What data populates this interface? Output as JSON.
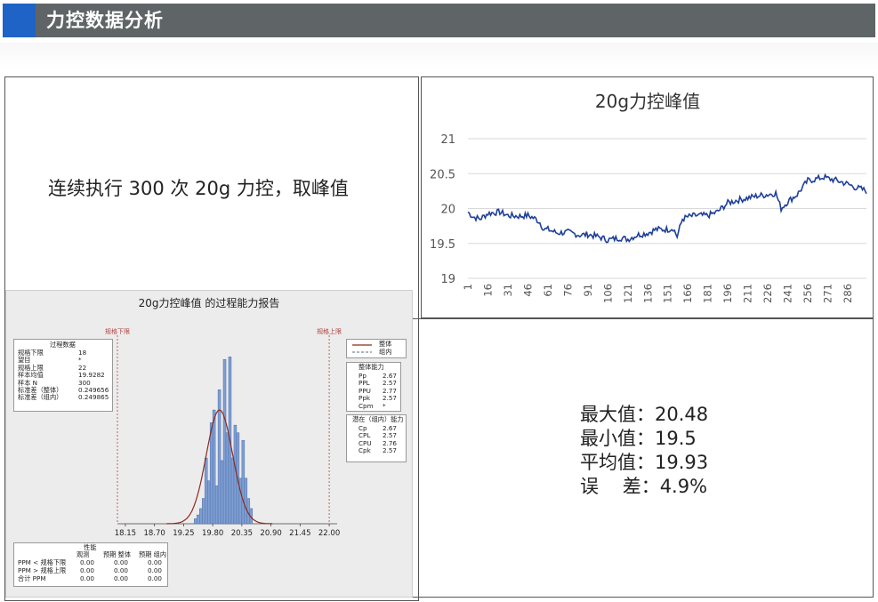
{
  "header": {
    "title": "力控数据分析",
    "accent_color": "#1f63c7",
    "bar_color": "#5f6566"
  },
  "left": {
    "description": "连续执行 300 次 20g 力控，取峰值"
  },
  "chart_data": [
    {
      "type": "line",
      "title": "20g力控峰值",
      "xlabel": "",
      "ylabel": "",
      "ylim": [
        19,
        21
      ],
      "yticks": [
        "19",
        "19.5",
        "20",
        "20.5",
        "21"
      ],
      "xticks": [
        "1",
        "16",
        "31",
        "46",
        "61",
        "76",
        "91",
        "106",
        "121",
        "136",
        "151",
        "166",
        "181",
        "196",
        "211",
        "226",
        "241",
        "256",
        "271",
        "286"
      ],
      "x_range": [
        1,
        300
      ],
      "series": [
        {
          "color": "#1f3f99",
          "points": [
            [
              1,
              19.95
            ],
            [
              5,
              19.88
            ],
            [
              10,
              19.85
            ],
            [
              16,
              19.93
            ],
            [
              25,
              19.95
            ],
            [
              31,
              19.9
            ],
            [
              40,
              19.89
            ],
            [
              46,
              19.9
            ],
            [
              52,
              19.85
            ],
            [
              55,
              19.8
            ],
            [
              58,
              19.7
            ],
            [
              61,
              19.7
            ],
            [
              68,
              19.65
            ],
            [
              76,
              19.66
            ],
            [
              85,
              19.62
            ],
            [
              91,
              19.63
            ],
            [
              100,
              19.59
            ],
            [
              106,
              19.55
            ],
            [
              115,
              19.58
            ],
            [
              121,
              19.56
            ],
            [
              128,
              19.62
            ],
            [
              136,
              19.65
            ],
            [
              142,
              19.7
            ],
            [
              151,
              19.7
            ],
            [
              155,
              19.72
            ],
            [
              158,
              19.6
            ],
            [
              162,
              19.85
            ],
            [
              166,
              19.88
            ],
            [
              172,
              19.9
            ],
            [
              181,
              19.9
            ],
            [
              188,
              19.95
            ],
            [
              196,
              20.08
            ],
            [
              203,
              20.12
            ],
            [
              211,
              20.15
            ],
            [
              218,
              20.18
            ],
            [
              226,
              20.2
            ],
            [
              232,
              20.22
            ],
            [
              236,
              20.0
            ],
            [
              241,
              20.1
            ],
            [
              248,
              20.2
            ],
            [
              252,
              20.3
            ],
            [
              256,
              20.4
            ],
            [
              262,
              20.42
            ],
            [
              268,
              20.45
            ],
            [
              271,
              20.43
            ],
            [
              278,
              20.4
            ],
            [
              286,
              20.35
            ],
            [
              292,
              20.3
            ],
            [
              296,
              20.28
            ],
            [
              300,
              20.25
            ]
          ]
        }
      ]
    },
    {
      "type": "bar",
      "title": "20g力控峰值 的过程能力报告",
      "xlabel": "",
      "ylabel": "",
      "xlim": [
        18.0,
        22.15
      ],
      "xticks": [
        "18.15",
        "18.70",
        "19.25",
        "19.80",
        "20.35",
        "20.90",
        "21.45",
        "22.00"
      ],
      "reference_lines": [
        {
          "label": "规格下限",
          "x": 18.0
        },
        {
          "label": "规格上限",
          "x": 22.0
        }
      ],
      "bin_width": 0.05,
      "bin_start": 19.45,
      "values": [
        0.2,
        0.35,
        0.6,
        1.0,
        2.6,
        1.7,
        4.0,
        4.5,
        1.5,
        5.3,
        2.5,
        6.5,
        3.6,
        6.6,
        2.6,
        3.9,
        3.6,
        1.8,
        3.3,
        1.8,
        1.0,
        0.6
      ],
      "fit_curve": {
        "mean": 19.9282,
        "stdev": 0.249656,
        "color": "#8b2a1f"
      },
      "bar_color": "#7f9fd3",
      "legend": [
        {
          "label": "整体",
          "style": "solid",
          "color": "#8b2a1f"
        },
        {
          "label": "组内",
          "style": "dashed",
          "color": "#5a6a8a"
        }
      ]
    }
  ],
  "minitab": {
    "process_data": {
      "title": "过程数据",
      "rows": [
        [
          "规格下限",
          "18"
        ],
        [
          "望目",
          "*"
        ],
        [
          "规格上限",
          "22"
        ],
        [
          "样本均值",
          "19.9282"
        ],
        [
          "样本 N",
          "300"
        ],
        [
          "标准差（整体）",
          "0.249656"
        ],
        [
          "标准差（组内）",
          "0.249865"
        ]
      ]
    },
    "overall": {
      "title": "整体能力",
      "rows": [
        [
          "Pp",
          "2.67"
        ],
        [
          "PPL",
          "2.57"
        ],
        [
          "PPU",
          "2.77"
        ],
        [
          "Ppk",
          "2.57"
        ],
        [
          "Cpm",
          "*"
        ]
      ]
    },
    "potential": {
      "title": "潜在（组内）能力",
      "rows": [
        [
          "Cp",
          "2.67"
        ],
        [
          "CPL",
          "2.57"
        ],
        [
          "CPU",
          "2.76"
        ],
        [
          "Cpk",
          "2.57"
        ]
      ]
    },
    "performance": {
      "title": "性能",
      "headers": [
        "观测",
        "预期 整体",
        "预期 组内"
      ],
      "rows": [
        [
          "PPM < 规格下限",
          "0.00",
          "0.00",
          "0.00"
        ],
        [
          "PPM > 规格上限",
          "0.00",
          "0.00",
          "0.00"
        ],
        [
          "合计 PPM",
          "0.00",
          "0.00",
          "0.00"
        ]
      ]
    }
  },
  "stats": {
    "max": "最大值：20.48",
    "min": "最小值：19.5",
    "avg": "平均值：19.93",
    "err": "误    差：4.9%"
  }
}
